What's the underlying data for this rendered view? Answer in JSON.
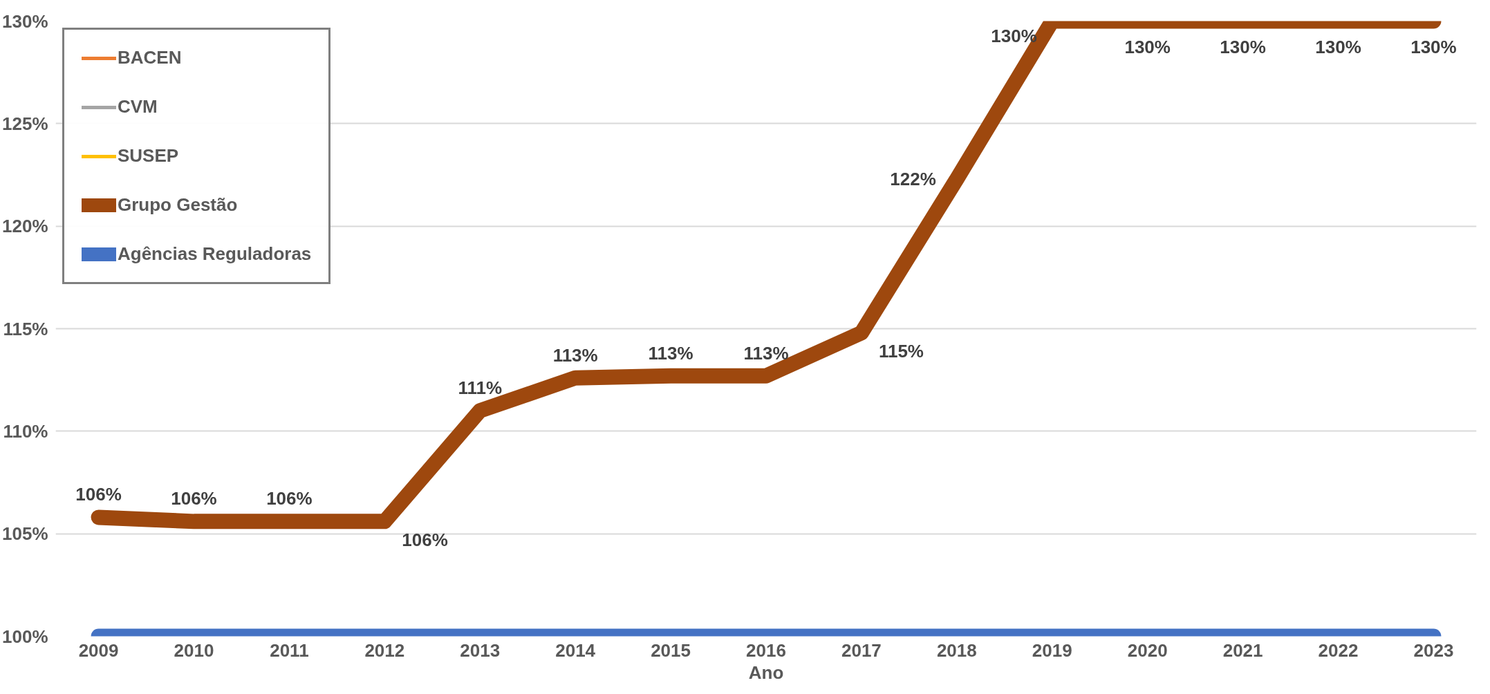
{
  "chart_data": {
    "type": "line",
    "xlabel": "Ano",
    "categories": [
      "2009",
      "2010",
      "2011",
      "2012",
      "2013",
      "2014",
      "2015",
      "2016",
      "2017",
      "2018",
      "2019",
      "2020",
      "2021",
      "2022",
      "2023"
    ],
    "ylim": [
      100,
      130
    ],
    "yticks": [
      {
        "value": 100,
        "label": "100%"
      },
      {
        "value": 105,
        "label": "105%"
      },
      {
        "value": 110,
        "label": "110%"
      },
      {
        "value": 115,
        "label": "115%"
      },
      {
        "value": 120,
        "label": "120%"
      },
      {
        "value": 125,
        "label": "125%"
      },
      {
        "value": 130,
        "label": "130%"
      }
    ],
    "grid": "y",
    "legend": "top left",
    "marker": "none",
    "line_style": "solid",
    "series": [
      {
        "name": "BACEN",
        "color": "#ed7d31",
        "values": [
          null,
          null,
          null,
          null,
          null,
          null,
          null,
          null,
          null,
          null,
          null,
          null,
          null,
          null,
          null
        ]
      },
      {
        "name": "CVM",
        "color": "#a5a5a5",
        "values": [
          null,
          null,
          null,
          null,
          null,
          null,
          null,
          null,
          null,
          null,
          null,
          null,
          null,
          null,
          null
        ]
      },
      {
        "name": "SUSEP",
        "color": "#ffc000",
        "values": [
          null,
          null,
          null,
          null,
          null,
          null,
          null,
          null,
          null,
          null,
          null,
          null,
          null,
          null,
          null
        ]
      },
      {
        "name": "Grupo Gestão",
        "color": "#9e480e",
        "values": [
          105.8,
          105.6,
          105.6,
          105.6,
          111,
          112.6,
          112.7,
          112.7,
          114.8,
          122.3,
          130,
          130,
          130,
          130,
          130
        ],
        "value_labels": [
          "106%",
          "106%",
          "106%",
          "106%",
          "111%",
          "113%",
          "113%",
          "113%",
          "115%",
          "122%",
          "130%",
          "130%",
          "130%",
          "130%",
          "130%"
        ]
      },
      {
        "name": "Agências Reguladoras",
        "color": "#4472c4",
        "values": [
          100,
          100,
          100,
          100,
          100,
          100,
          100,
          100,
          100,
          100,
          100,
          100,
          100,
          100,
          100
        ]
      }
    ]
  }
}
